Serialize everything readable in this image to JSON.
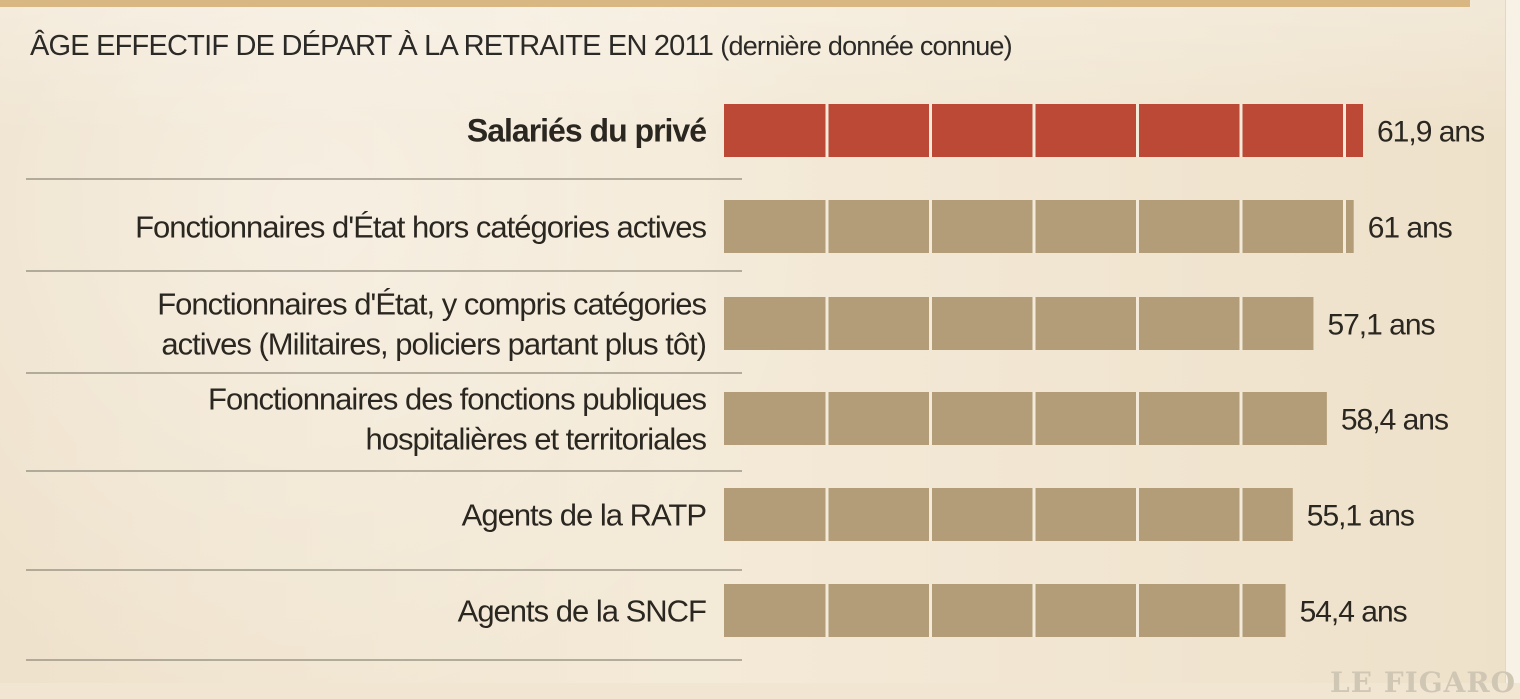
{
  "chart_data": {
    "type": "bar",
    "orientation": "horizontal",
    "title": "ÂGE EFFECTIF DE DÉPART À LA RETRAITE EN 2011",
    "subtitle": "(dernière donnée connue)",
    "unit": "ans",
    "categories": [
      "Salariés du privé",
      "Fonctionnaires d'État hors catégories actives",
      "Fonctionnaires d'État,  y compris catégories actives (Militaires, policiers partant plus tôt)",
      "Fonctionnaires des fonctions publiques hospitalières et territoriales",
      "Agents de la RATP",
      "Agents de la SNCF"
    ],
    "category_lines": [
      [
        "Salariés du privé"
      ],
      [
        "Fonctionnaires d'État hors catégories actives"
      ],
      [
        "Fonctionnaires d'État,  y compris catégories",
        "actives (Militaires, policiers partant plus tôt)"
      ],
      [
        "Fonctionnaires des fonctions publiques",
        "hospitalières et territoriales"
      ],
      [
        "Agents de la RATP"
      ],
      [
        "Agents de la SNCF"
      ]
    ],
    "values": [
      61.9,
      61,
      57.1,
      58.4,
      55.1,
      54.4
    ],
    "value_labels": [
      "61,9 ans",
      "61 ans",
      "57,1 ans",
      "58,4 ans",
      "55,1 ans",
      "54,4 ans"
    ],
    "highlighted_index": 0,
    "colors": {
      "highlight": "#bc4936",
      "bar": "#b29d78",
      "divider": "#f3ead9",
      "separator": "#8d8778"
    }
  },
  "footer_brand": "LE FIGARO"
}
